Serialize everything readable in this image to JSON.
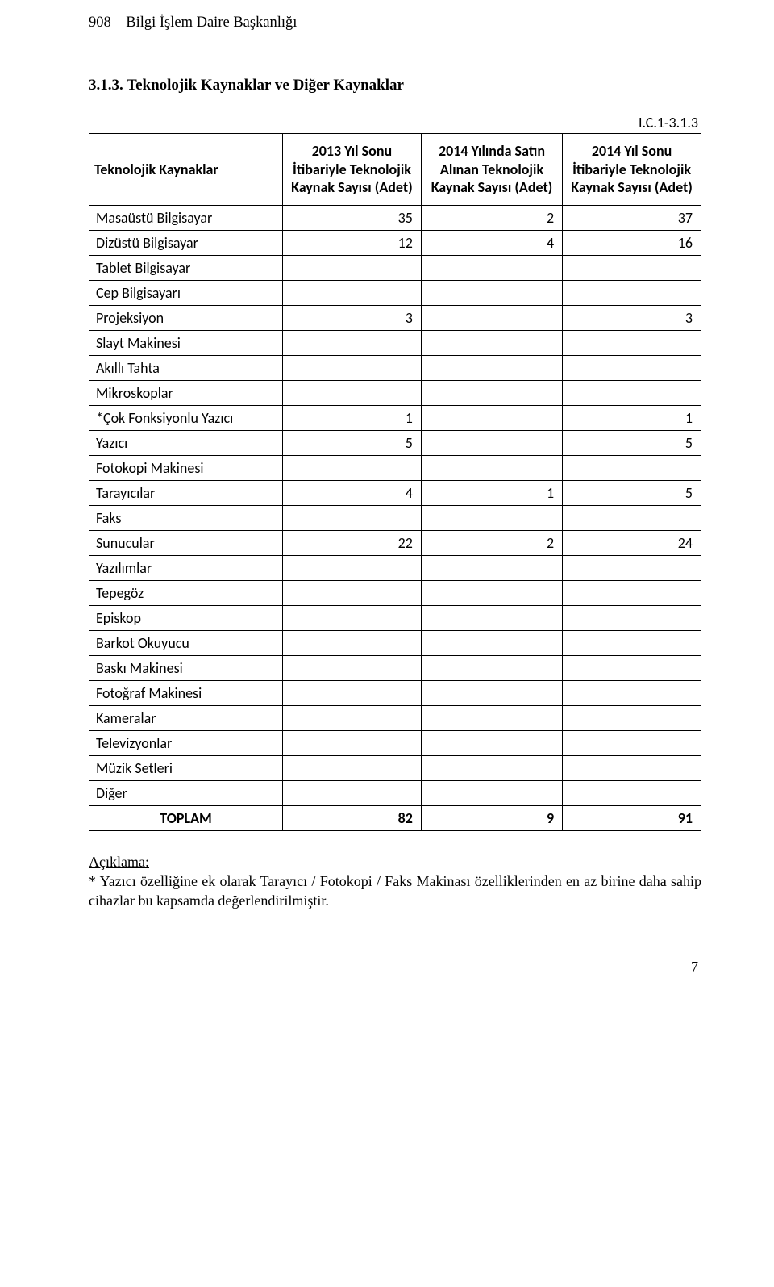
{
  "header": "908 – Bilgi İşlem Daire Başkanlığı",
  "section_title": "3.1.3. Teknolojik Kaynaklar ve Diğer Kaynaklar",
  "table_label": "I.C.1-3.1.3",
  "columns": {
    "c0": "Teknolojik Kaynaklar",
    "c1": "2013 Yıl Sonu İtibariyle Teknolojik Kaynak Sayısı (Adet)",
    "c2": "2014 Yılında Satın Alınan Teknolojik Kaynak Sayısı (Adet)",
    "c3": "2014 Yıl Sonu İtibariyle Teknolojik Kaynak Sayısı (Adet)"
  },
  "rows": [
    {
      "label": "Masaüstü Bilgisayar",
      "v1": "35",
      "v2": "2",
      "v3": "37"
    },
    {
      "label": "Dizüstü Bilgisayar",
      "v1": "12",
      "v2": "4",
      "v3": "16"
    },
    {
      "label": "Tablet Bilgisayar",
      "v1": "",
      "v2": "",
      "v3": ""
    },
    {
      "label": "Cep Bilgisayarı",
      "v1": "",
      "v2": "",
      "v3": ""
    },
    {
      "label": "Projeksiyon",
      "v1": "3",
      "v2": "",
      "v3": "3"
    },
    {
      "label": "Slayt Makinesi",
      "v1": "",
      "v2": "",
      "v3": ""
    },
    {
      "label": "Akıllı Tahta",
      "v1": "",
      "v2": "",
      "v3": ""
    },
    {
      "label": "Mikroskoplar",
      "v1": "",
      "v2": "",
      "v3": ""
    },
    {
      "label": "*Çok Fonksiyonlu Yazıcı",
      "v1": "1",
      "v2": "",
      "v3": "1"
    },
    {
      "label": "Yazıcı",
      "v1": "5",
      "v2": "",
      "v3": "5"
    },
    {
      "label": "Fotokopi Makinesi",
      "v1": "",
      "v2": "",
      "v3": ""
    },
    {
      "label": "Tarayıcılar",
      "v1": "4",
      "v2": "1",
      "v3": "5"
    },
    {
      "label": "Faks",
      "v1": "",
      "v2": "",
      "v3": ""
    },
    {
      "label": "Sunucular",
      "v1": "22",
      "v2": "2",
      "v3": "24"
    },
    {
      "label": "Yazılımlar",
      "v1": "",
      "v2": "",
      "v3": ""
    },
    {
      "label": "Tepegöz",
      "v1": "",
      "v2": "",
      "v3": ""
    },
    {
      "label": "Episkop",
      "v1": "",
      "v2": "",
      "v3": ""
    },
    {
      "label": "Barkot Okuyucu",
      "v1": "",
      "v2": "",
      "v3": ""
    },
    {
      "label": "Baskı Makinesi",
      "v1": "",
      "v2": "",
      "v3": ""
    },
    {
      "label": "Fotoğraf Makinesi",
      "v1": "",
      "v2": "",
      "v3": ""
    },
    {
      "label": "Kameralar",
      "v1": "",
      "v2": "",
      "v3": ""
    },
    {
      "label": "Televizyonlar",
      "v1": "",
      "v2": "",
      "v3": ""
    },
    {
      "label": "Müzik Setleri",
      "v1": "",
      "v2": "",
      "v3": ""
    },
    {
      "label": "Diğer",
      "v1": "",
      "v2": "",
      "v3": ""
    }
  ],
  "total": {
    "label": "TOPLAM",
    "v1": "82",
    "v2": "9",
    "v3": "91"
  },
  "explain": {
    "title": "Açıklama:",
    "body": "* Yazıcı özelliğine ek olarak Tarayıcı / Fotokopi / Faks Makinası özelliklerinden en az birine daha sahip cihazlar bu kapsamda değerlendirilmiştir."
  },
  "page_number": "7"
}
